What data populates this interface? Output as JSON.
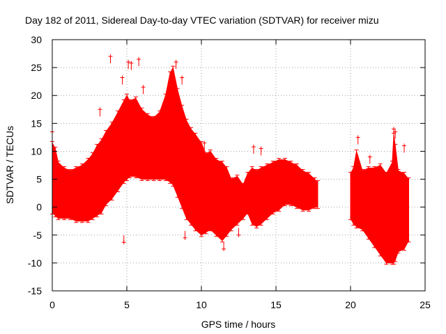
{
  "chart_data": {
    "type": "scatter",
    "title": "Day 182 of 2011, Sidereal Day-to-day VTEC variation (SDTVAR) for receiver mizu",
    "xlabel": "GPS time / hours",
    "ylabel": "SDTVAR / TECUs",
    "xlim": [
      0,
      25
    ],
    "ylim": [
      -15,
      30
    ],
    "xticks": [
      0,
      5,
      10,
      15,
      20,
      25
    ],
    "yticks": [
      -15,
      -10,
      -5,
      0,
      5,
      10,
      15,
      20,
      25,
      30
    ],
    "grid": true,
    "marker": "plus",
    "color": "#ff0000",
    "series": [
      {
        "name": "SDTVAR",
        "envelope": {
          "description": "dense band of measurements (upper and lower bounds) over GPS time",
          "segments": [
            {
              "x": [
                0.0,
                0.2,
                0.4,
                0.8,
                1.2,
                1.6,
                2.0,
                2.4,
                2.7,
                3.0,
                3.3,
                3.6,
                4.0,
                4.4,
                4.8,
                5.0,
                5.2,
                5.6,
                6.0,
                6.4,
                6.8,
                7.2,
                7.6,
                7.9,
                8.1,
                8.4,
                8.7,
                9.0,
                9.3,
                9.6,
                10.0,
                10.3,
                10.6,
                11.0,
                11.4,
                11.7,
                12.0,
                12.4,
                12.8,
                13.1,
                13.4,
                13.7,
                14.0,
                14.4,
                14.8,
                15.2,
                15.6,
                16.0,
                16.4,
                16.8,
                17.2,
                17.6,
                17.8
              ],
              "upper": [
                11.5,
                10.5,
                8.0,
                7.0,
                6.5,
                7.0,
                7.5,
                8.5,
                9.5,
                11.0,
                12.0,
                13.5,
                15.0,
                17.0,
                19.0,
                20.0,
                19.0,
                19.5,
                17.5,
                16.5,
                16.0,
                17.0,
                20.0,
                24.0,
                25.0,
                21.0,
                18.0,
                15.5,
                14.0,
                13.0,
                11.5,
                9.5,
                10.0,
                8.5,
                8.0,
                7.0,
                5.0,
                5.5,
                4.0,
                6.0,
                7.0,
                6.5,
                7.0,
                7.5,
                8.0,
                8.5,
                8.5,
                8.0,
                7.5,
                6.5,
                6.0,
                5.0,
                4.5
              ],
              "lower": [
                -1.0,
                -1.5,
                -2.0,
                -2.0,
                -2.0,
                -2.5,
                -2.5,
                -2.5,
                -2.0,
                -1.5,
                -1.0,
                0.5,
                1.5,
                3.0,
                4.5,
                5.0,
                5.5,
                5.5,
                5.0,
                5.0,
                5.0,
                5.0,
                5.0,
                4.5,
                4.0,
                2.0,
                0.0,
                -2.0,
                -3.0,
                -4.0,
                -5.0,
                -4.5,
                -4.0,
                -5.0,
                -6.0,
                -5.0,
                -4.0,
                -3.0,
                -2.0,
                -1.0,
                -3.0,
                -3.5,
                -3.0,
                -2.0,
                -1.0,
                -0.5,
                0.5,
                0.5,
                0.0,
                -0.5,
                -0.5,
                0.0,
                0.0
              ]
            },
            {
              "x": [
                20.0,
                20.2,
                20.4,
                20.8,
                21.2,
                21.6,
                22.0,
                22.4,
                22.8,
                22.9,
                23.0,
                23.2,
                23.6,
                23.9
              ],
              "upper": [
                6.0,
                7.0,
                10.0,
                6.5,
                7.0,
                7.0,
                7.5,
                6.0,
                8.0,
                13.0,
                11.0,
                6.5,
                6.0,
                5.0
              ],
              "lower": [
                -2.0,
                -3.0,
                -3.5,
                -4.0,
                -5.5,
                -7.0,
                -8.5,
                -10.0,
                -10.0,
                -10.0,
                -9.5,
                -8.0,
                -7.5,
                -6.0
              ]
            }
          ]
        },
        "outliers": [
          {
            "x": 3.2,
            "y": 17.5
          },
          {
            "x": 3.9,
            "y": 27.0
          },
          {
            "x": 4.7,
            "y": 23.2
          },
          {
            "x": 4.8,
            "y": -6.3
          },
          {
            "x": 5.0,
            "y": 19.0
          },
          {
            "x": 5.1,
            "y": 26.0
          },
          {
            "x": 5.3,
            "y": 25.8
          },
          {
            "x": 5.8,
            "y": 26.5
          },
          {
            "x": 6.1,
            "y": 21.5
          },
          {
            "x": 8.3,
            "y": 26.0
          },
          {
            "x": 8.7,
            "y": 23.2
          },
          {
            "x": 8.9,
            "y": -5.5
          },
          {
            "x": 12.5,
            "y": -5.0
          },
          {
            "x": 13.5,
            "y": 10.8
          },
          {
            "x": 14.0,
            "y": 10.5
          },
          {
            "x": 20.5,
            "y": 12.5
          },
          {
            "x": 21.3,
            "y": 9.0
          },
          {
            "x": 22.9,
            "y": 14.0
          },
          {
            "x": 23.0,
            "y": 13.5
          },
          {
            "x": 23.6,
            "y": 11.0
          },
          {
            "x": 0.0,
            "y": 13.5
          },
          {
            "x": 10.2,
            "y": 11.5
          },
          {
            "x": 11.5,
            "y": -7.5
          }
        ]
      }
    ]
  }
}
